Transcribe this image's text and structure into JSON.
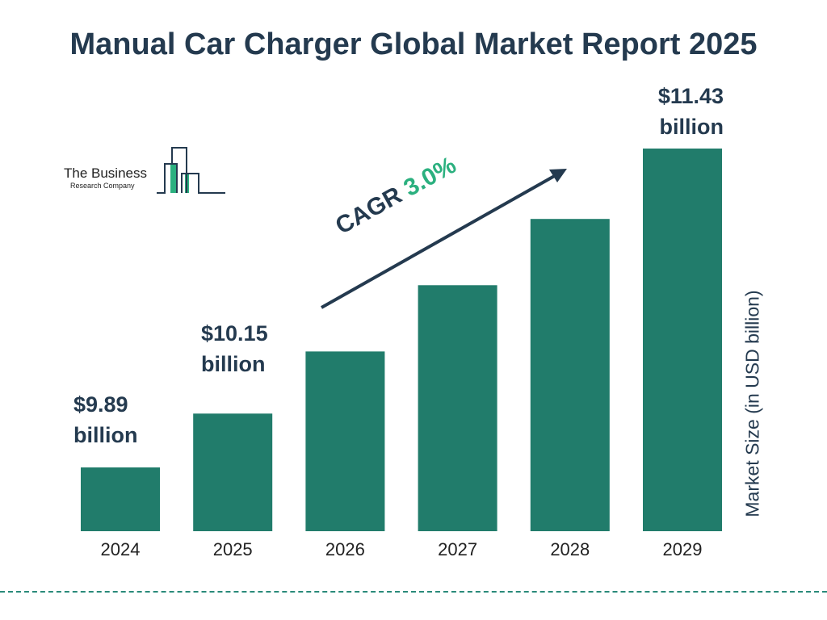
{
  "chart_data": {
    "type": "bar",
    "title": "Manual Car Charger Global Market Report 2025",
    "categories": [
      "2024",
      "2025",
      "2026",
      "2027",
      "2028",
      "2029"
    ],
    "values": [
      9.89,
      10.15,
      10.45,
      10.77,
      11.09,
      11.43
    ],
    "data_labels": {
      "2024": [
        "$9.89",
        "billion"
      ],
      "2025": [
        "$10.15",
        "billion"
      ],
      "2029": [
        "$11.43",
        "billion"
      ]
    },
    "ylabel": "Market Size (in USD billion)",
    "xlabel": "",
    "annotation": {
      "prefix": "CAGR ",
      "value": "3.0%"
    },
    "grid": false,
    "bar_color": "#217c6b",
    "accent_color": "#2bb07f",
    "text_color": "#243a4f"
  },
  "logo": {
    "line1": "The Business",
    "line2": "Research Company"
  }
}
